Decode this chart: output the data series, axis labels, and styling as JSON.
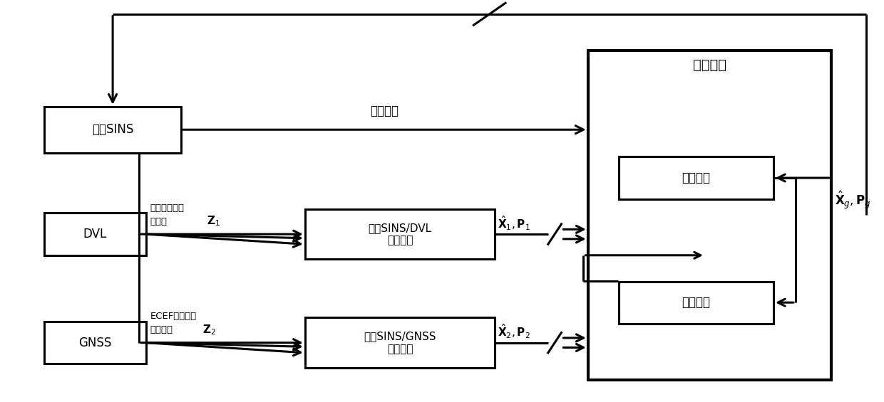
{
  "bg": "#ffffff",
  "lw": 2.2,
  "sins": [
    0.05,
    0.62,
    0.155,
    0.115
  ],
  "dvl": [
    0.05,
    0.365,
    0.115,
    0.105
  ],
  "gnss": [
    0.05,
    0.095,
    0.115,
    0.105
  ],
  "sub1": [
    0.345,
    0.355,
    0.215,
    0.125
  ],
  "sub2": [
    0.345,
    0.085,
    0.215,
    0.125
  ],
  "main": [
    0.665,
    0.055,
    0.275,
    0.82
  ],
  "tu": [
    0.7,
    0.505,
    0.175,
    0.105
  ],
  "of": [
    0.7,
    0.195,
    0.175,
    0.105
  ],
  "sins_lbl": "格网SINS",
  "dvl_lbl": "DVL",
  "gnss_lbl": "GNSS",
  "sub1_lbl": "格网SINS/DVL\n子滤波器",
  "sub2_lbl": "格网SINS/GNSS\n子滤波器",
  "main_lbl": "主滤波器",
  "tu_lbl": "时间更新",
  "of_lbl": "最优融合",
  "nav_lbl": "导航信息",
  "dvl_m1": "格网速度信息",
  "dvl_m2": "量测量",
  "gnss_m1": "ECEF系位置信",
  "gnss_m2": "息量测量"
}
